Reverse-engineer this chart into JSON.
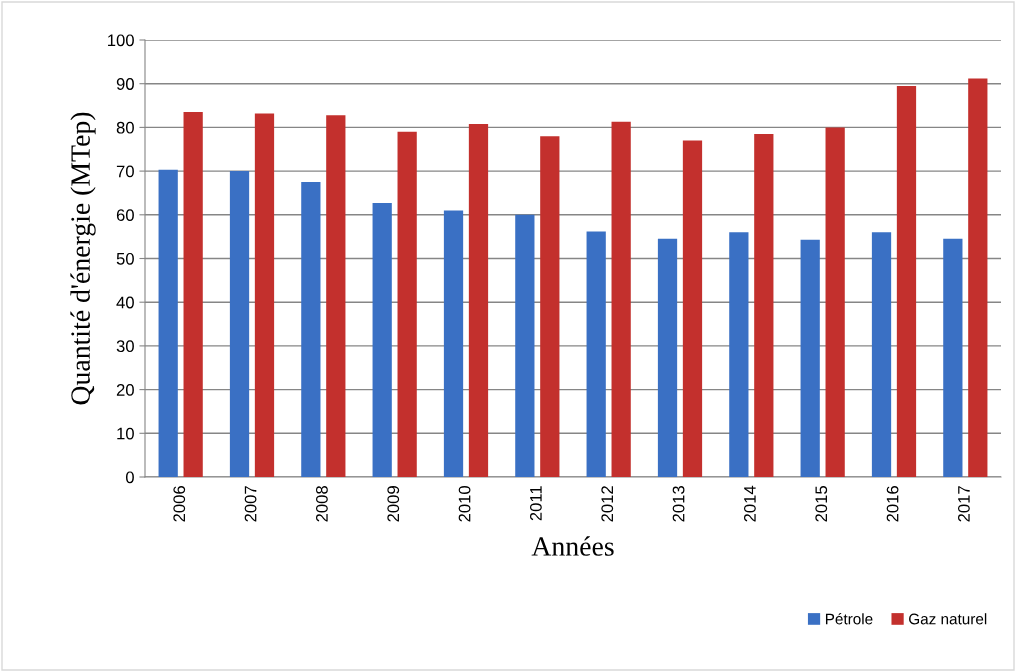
{
  "chart_data": {
    "type": "bar",
    "xlabel": "Années",
    "ylabel": "Quantité d'énergie (MTep)",
    "categories": [
      "2006",
      "2007",
      "2008",
      "2009",
      "2010",
      "2011",
      "2012",
      "2013",
      "2014",
      "2015",
      "2016",
      "2017"
    ],
    "series": [
      {
        "name": "Pétrole",
        "color": "#3a70c4",
        "values": [
          70.3,
          70,
          67.5,
          62.7,
          61,
          60,
          56.2,
          54.5,
          56,
          54.3,
          56,
          54.5
        ]
      },
      {
        "name": "Gaz naturel",
        "color": "#c3302d",
        "values": [
          83.5,
          83.2,
          82.8,
          79,
          80.8,
          78,
          81.3,
          77,
          78.5,
          80,
          89.5,
          91.2
        ]
      }
    ],
    "ylim": [
      0,
      100
    ],
    "yticks": [
      0,
      10,
      20,
      30,
      40,
      50,
      60,
      70,
      80,
      90,
      100
    ],
    "grid": "y",
    "legend": "bottom right"
  }
}
